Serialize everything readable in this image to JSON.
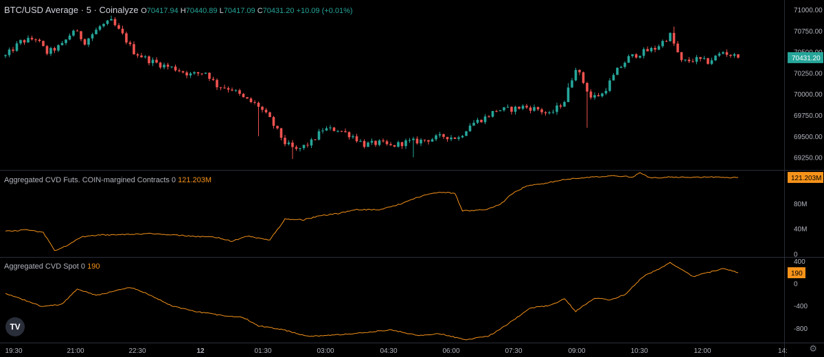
{
  "header": {
    "title": "BTC/USD Average · 5 · Coinalyze",
    "o_label": "O",
    "o_value": "70417.94",
    "h_label": "H",
    "h_value": "70440.89",
    "l_label": "L",
    "l_value": "70417.09",
    "c_label": "C",
    "c_value": "70431.20",
    "change": "+10.09 (+0.01%)"
  },
  "colors": {
    "up": "#26a69a",
    "down": "#ef5350",
    "cvd": "#f7931a",
    "separator": "#2a2e39",
    "axis_text": "#b2b5be",
    "price_tag": "#26a69a"
  },
  "logo_text": "TV",
  "settings_icon": "gear-icon",
  "chart_data": [
    {
      "type": "candlestick",
      "title": "BTC/USD Average · 5 · Coinalyze",
      "ylim": [
        69100,
        71050
      ],
      "y_ticks": [
        "71000.00",
        "70750.00",
        "70500.00",
        "70250.00",
        "70000.00",
        "69750.00",
        "69500.00",
        "69250.00"
      ],
      "last_price_label": "70431.20",
      "x_ticks": [
        "19:30",
        "21:00",
        "22:30",
        "12",
        "01:30",
        "03:00",
        "04:30",
        "06:00",
        "07:30",
        "09:00",
        "10:30",
        "12:00",
        "14:"
      ],
      "close_path": [
        [
          0,
          70450
        ],
        [
          4,
          70620
        ],
        [
          8,
          70660
        ],
        [
          11,
          70490
        ],
        [
          15,
          70580
        ],
        [
          18,
          70760
        ],
        [
          21,
          70620
        ],
        [
          25,
          70800
        ],
        [
          28,
          70860
        ],
        [
          31,
          70700
        ],
        [
          34,
          70500
        ],
        [
          38,
          70400
        ],
        [
          41,
          70350
        ],
        [
          45,
          70300
        ],
        [
          49,
          70230
        ],
        [
          53,
          70260
        ],
        [
          56,
          70100
        ],
        [
          60,
          70060
        ],
        [
          63,
          69950
        ],
        [
          67,
          69860
        ],
        [
          70,
          69700
        ],
        [
          74,
          69420
        ],
        [
          77,
          69330
        ],
        [
          81,
          69430
        ],
        [
          84,
          69580
        ],
        [
          88,
          69580
        ],
        [
          92,
          69500
        ],
        [
          95,
          69400
        ],
        [
          99,
          69420
        ],
        [
          102,
          69380
        ],
        [
          106,
          69430
        ],
        [
          109,
          69440
        ],
        [
          113,
          69470
        ],
        [
          116,
          69500
        ],
        [
          120,
          69480
        ],
        [
          123,
          69640
        ],
        [
          127,
          69720
        ],
        [
          130,
          69810
        ],
        [
          134,
          69820
        ],
        [
          137,
          69850
        ],
        [
          141,
          69820
        ],
        [
          144,
          69750
        ],
        [
          148,
          69920
        ],
        [
          151,
          70320
        ],
        [
          155,
          69960
        ],
        [
          158,
          70000
        ],
        [
          162,
          70280
        ],
        [
          165,
          70430
        ],
        [
          169,
          70500
        ],
        [
          172,
          70540
        ],
        [
          176,
          70700
        ],
        [
          179,
          70380
        ],
        [
          183,
          70410
        ],
        [
          186,
          70380
        ],
        [
          190,
          70500
        ],
        [
          194,
          70431
        ]
      ],
      "down_spikes": [
        [
          67,
          69500
        ],
        [
          76,
          69230
        ],
        [
          108,
          69250
        ],
        [
          154,
          69600
        ]
      ],
      "up_spikes": [
        [
          28,
          70930
        ],
        [
          149,
          70130
        ],
        [
          177,
          70800
        ]
      ]
    },
    {
      "type": "line",
      "title": "Aggregated CVD Futs. COIN-margined Contracts 0",
      "last_value_label": "121.203M",
      "ylim": [
        -5,
        132
      ],
      "y_ticks": [
        "121.203M",
        "80M",
        "40M",
        "0"
      ],
      "y_tick_values": [
        121.203,
        80,
        40,
        0
      ],
      "series": [
        {
          "values": [
            [
              0,
              36
            ],
            [
              6,
              38
            ],
            [
              10,
              34
            ],
            [
              13,
              5
            ],
            [
              17,
              15
            ],
            [
              20,
              27
            ],
            [
              25,
              30
            ],
            [
              30,
              30
            ],
            [
              38,
              32
            ],
            [
              44,
              30
            ],
            [
              52,
              27
            ],
            [
              56,
              26
            ],
            [
              60,
              20
            ],
            [
              64,
              28
            ],
            [
              70,
              22
            ],
            [
              74,
              55
            ],
            [
              79,
              54
            ],
            [
              83,
              60
            ],
            [
              88,
              64
            ],
            [
              93,
              70
            ],
            [
              99,
              70
            ],
            [
              104,
              78
            ],
            [
              108,
              87
            ],
            [
              112,
              95
            ],
            [
              115,
              98
            ],
            [
              119,
              96
            ],
            [
              121,
              68
            ],
            [
              127,
              70
            ],
            [
              131,
              78
            ],
            [
              134,
              95
            ],
            [
              138,
              108
            ],
            [
              143,
              112
            ],
            [
              148,
              118
            ],
            [
              152,
              120
            ],
            [
              156,
              122
            ],
            [
              161,
              124
            ],
            [
              166,
              122
            ],
            [
              168,
              128
            ],
            [
              171,
              120
            ],
            [
              176,
              122
            ],
            [
              181,
              121
            ],
            [
              186,
              122
            ],
            [
              190,
              121
            ],
            [
              194,
              121.2
            ]
          ]
        }
      ]
    },
    {
      "type": "line",
      "title": "Aggregated CVD Spot 0",
      "last_value_label": "190",
      "ylim": [
        -1060,
        460
      ],
      "y_ticks": [
        "400",
        "0",
        "-400",
        "-800"
      ],
      "y_tick_values": [
        400,
        0,
        -400,
        -800
      ],
      "series": [
        {
          "values": [
            [
              0,
              -180
            ],
            [
              5,
              -300
            ],
            [
              10,
              -420
            ],
            [
              15,
              -370
            ],
            [
              19,
              -100
            ],
            [
              24,
              -220
            ],
            [
              28,
              -150
            ],
            [
              33,
              -70
            ],
            [
              38,
              -200
            ],
            [
              44,
              -400
            ],
            [
              50,
              -500
            ],
            [
              57,
              -570
            ],
            [
              63,
              -610
            ],
            [
              67,
              -760
            ],
            [
              73,
              -820
            ],
            [
              80,
              -950
            ],
            [
              88,
              -920
            ],
            [
              95,
              -880
            ],
            [
              102,
              -830
            ],
            [
              109,
              -930
            ],
            [
              115,
              -900
            ],
            [
              122,
              -1010
            ],
            [
              128,
              -940
            ],
            [
              133,
              -730
            ],
            [
              139,
              -440
            ],
            [
              144,
              -400
            ],
            [
              148,
              -280
            ],
            [
              151,
              -500
            ],
            [
              156,
              -260
            ],
            [
              160,
              -300
            ],
            [
              164,
              -200
            ],
            [
              169,
              130
            ],
            [
              173,
              260
            ],
            [
              176,
              370
            ],
            [
              179,
              250
            ],
            [
              182,
              120
            ],
            [
              187,
              210
            ],
            [
              190,
              270
            ],
            [
              194,
              190
            ]
          ]
        }
      ]
    }
  ]
}
